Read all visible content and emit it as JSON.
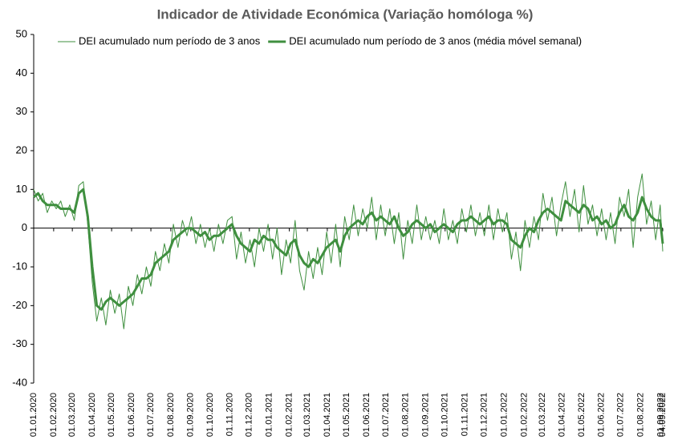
{
  "chart_data": {
    "type": "line",
    "title": "Indicador de Atividade Económica (Variação homóloga %)",
    "legend": "top",
    "x": [
      "2020-01-01",
      "2020-01-08",
      "2020-01-15",
      "2020-01-22",
      "2020-01-29",
      "2020-02-05",
      "2020-02-12",
      "2020-02-19",
      "2020-02-26",
      "2020-03-04",
      "2020-03-11",
      "2020-03-18",
      "2020-03-25",
      "2020-04-01",
      "2020-04-08",
      "2020-04-15",
      "2020-04-22",
      "2020-04-29",
      "2020-05-06",
      "2020-05-13",
      "2020-05-20",
      "2020-05-27",
      "2020-06-03",
      "2020-06-10",
      "2020-06-17",
      "2020-06-24",
      "2020-07-01",
      "2020-07-08",
      "2020-07-15",
      "2020-07-22",
      "2020-07-29",
      "2020-08-05",
      "2020-08-12",
      "2020-08-19",
      "2020-08-26",
      "2020-09-02",
      "2020-09-09",
      "2020-09-16",
      "2020-09-23",
      "2020-09-30",
      "2020-10-07",
      "2020-10-14",
      "2020-10-21",
      "2020-10-28",
      "2020-11-04",
      "2020-11-11",
      "2020-11-18",
      "2020-11-25",
      "2020-12-02",
      "2020-12-09",
      "2020-12-16",
      "2020-12-23",
      "2020-12-30",
      "2021-01-06",
      "2021-01-13",
      "2021-01-20",
      "2021-01-27",
      "2021-02-03",
      "2021-02-10",
      "2021-02-17",
      "2021-02-24",
      "2021-03-03",
      "2021-03-10",
      "2021-03-17",
      "2021-03-24",
      "2021-03-31",
      "2021-04-07",
      "2021-04-14",
      "2021-04-21",
      "2021-04-28",
      "2021-05-05",
      "2021-05-12",
      "2021-05-19",
      "2021-05-26",
      "2021-06-02",
      "2021-06-09",
      "2021-06-16",
      "2021-06-23",
      "2021-06-30",
      "2021-07-07",
      "2021-07-14",
      "2021-07-21",
      "2021-07-28",
      "2021-08-04",
      "2021-08-11",
      "2021-08-18",
      "2021-08-25",
      "2021-09-01",
      "2021-09-08",
      "2021-09-15",
      "2021-09-22",
      "2021-09-29",
      "2021-10-06",
      "2021-10-13",
      "2021-10-20",
      "2021-10-27",
      "2021-11-03",
      "2021-11-10",
      "2021-11-17",
      "2021-11-24",
      "2021-12-01",
      "2021-12-08",
      "2021-12-15",
      "2021-12-22",
      "2021-12-29",
      "2022-01-05",
      "2022-01-12",
      "2022-01-19",
      "2022-01-26",
      "2022-02-02",
      "2022-02-09",
      "2022-02-16",
      "2022-02-23",
      "2022-03-02",
      "2022-03-09",
      "2022-03-16",
      "2022-03-23",
      "2022-03-30",
      "2022-04-06",
      "2022-04-13",
      "2022-04-20",
      "2022-04-27",
      "2022-05-04",
      "2022-05-11",
      "2022-05-18",
      "2022-05-25",
      "2022-06-01",
      "2022-06-08",
      "2022-06-15",
      "2022-06-22",
      "2022-06-29",
      "2022-07-06",
      "2022-07-13",
      "2022-07-20",
      "2022-07-27",
      "2022-08-03",
      "2022-08-10",
      "2022-08-17",
      "2022-08-24",
      "2022-08-31",
      "2022-09-04"
    ],
    "series": [
      {
        "name": "DEI acumulado num período de 3 anos",
        "color": "#3f8f3f",
        "width": 1,
        "values": [
          10,
          7,
          9,
          4,
          7,
          5,
          7,
          3,
          6,
          2,
          11,
          12,
          1,
          -14,
          -24,
          -18,
          -25,
          -16,
          -22,
          -17,
          -26,
          -15,
          -20,
          -12,
          -17,
          -10,
          -15,
          -6,
          -11,
          -4,
          -9,
          1,
          -5,
          2,
          -2,
          3,
          -4,
          1,
          -5,
          0,
          -6,
          1,
          -4,
          2,
          3,
          -8,
          -1,
          -9,
          -3,
          -10,
          0,
          -6,
          1,
          -8,
          0,
          -12,
          -3,
          -9,
          2,
          -11,
          -16,
          -6,
          -13,
          -5,
          -12,
          -1,
          -9,
          1,
          -10,
          3,
          -3,
          6,
          -2,
          5,
          0,
          8,
          -3,
          6,
          -2,
          5,
          -4,
          4,
          -8,
          2,
          -4,
          6,
          -3,
          3,
          -3,
          2,
          -4,
          5,
          -3,
          2,
          -4,
          5,
          -1,
          6,
          -2,
          4,
          -2,
          6,
          -3,
          5,
          -1,
          4,
          -8,
          -1,
          -11,
          2,
          -5,
          3,
          -3,
          9,
          2,
          8,
          -2,
          6,
          12,
          3,
          10,
          -1,
          11,
          1,
          6,
          -2,
          5,
          -3,
          4,
          -4,
          8,
          3,
          10,
          -5,
          8,
          14,
          1,
          7,
          -3,
          6,
          -6
        ]
      },
      {
        "name": "DEI acumulado num período de 3 anos (média móvel semanal)",
        "color": "#3f8f3f",
        "width": 3,
        "values": [
          8,
          9,
          7,
          6,
          6,
          6,
          5,
          5,
          5,
          4,
          9,
          10,
          3,
          -10,
          -20,
          -21,
          -19,
          -18,
          -19,
          -20,
          -19,
          -18,
          -17,
          -15,
          -13,
          -13,
          -12,
          -9,
          -8,
          -7,
          -6,
          -3,
          -2,
          -1,
          0,
          0,
          -1,
          -2,
          -1,
          -3,
          -2,
          -2,
          -1,
          0,
          1,
          -2,
          -4,
          -5,
          -6,
          -3,
          -4,
          -2,
          -3,
          -3,
          -5,
          -6,
          -7,
          -4,
          -3,
          -7,
          -9,
          -10,
          -8,
          -9,
          -7,
          -5,
          -4,
          -3,
          -6,
          -2,
          0,
          1,
          2,
          1,
          3,
          4,
          2,
          3,
          2,
          1,
          3,
          0,
          -2,
          -1,
          1,
          2,
          1,
          0,
          1,
          -1,
          0,
          1,
          0,
          -1,
          1,
          2,
          2,
          3,
          2,
          1,
          2,
          3,
          1,
          2,
          2,
          1,
          -3,
          -4,
          -5,
          -2,
          0,
          -1,
          2,
          4,
          5,
          4,
          3,
          2,
          7,
          6,
          5,
          4,
          6,
          5,
          2,
          3,
          1,
          2,
          0,
          1,
          4,
          6,
          3,
          2,
          4,
          8,
          5,
          3,
          2,
          2,
          -4
        ]
      }
    ],
    "xlim": [
      "2020-01-01",
      "2022-09-04"
    ],
    "xticks": [
      {
        "value": "2020-01-01",
        "label": "01.01.2020"
      },
      {
        "value": "2020-02-01",
        "label": "01.02.2020"
      },
      {
        "value": "2020-03-01",
        "label": "01.03.2020"
      },
      {
        "value": "2020-04-01",
        "label": "01.04.2020"
      },
      {
        "value": "2020-05-01",
        "label": "01.05.2020"
      },
      {
        "value": "2020-06-01",
        "label": "01.06.2020"
      },
      {
        "value": "2020-07-01",
        "label": "01.07.2020"
      },
      {
        "value": "2020-08-01",
        "label": "01.08.2020"
      },
      {
        "value": "2020-09-01",
        "label": "01.09.2020"
      },
      {
        "value": "2020-10-01",
        "label": "01.10.2020"
      },
      {
        "value": "2020-11-01",
        "label": "01.11.2020"
      },
      {
        "value": "2020-12-01",
        "label": "01.12.2020"
      },
      {
        "value": "2021-01-01",
        "label": "01.01.2021"
      },
      {
        "value": "2021-02-01",
        "label": "01.02.2021"
      },
      {
        "value": "2021-03-01",
        "label": "01.03.2021"
      },
      {
        "value": "2021-04-01",
        "label": "01.04.2021"
      },
      {
        "value": "2021-05-01",
        "label": "01.05.2021"
      },
      {
        "value": "2021-06-01",
        "label": "01.06.2021"
      },
      {
        "value": "2021-07-01",
        "label": "01.07.2021"
      },
      {
        "value": "2021-08-01",
        "label": "01.08.2021"
      },
      {
        "value": "2021-09-01",
        "label": "01.09.2021"
      },
      {
        "value": "2021-10-01",
        "label": "01.10.2021"
      },
      {
        "value": "2021-11-01",
        "label": "01.11.2021"
      },
      {
        "value": "2021-12-01",
        "label": "01.12.2021"
      },
      {
        "value": "2022-01-01",
        "label": "01.01.2022"
      },
      {
        "value": "2022-02-01",
        "label": "01.02.2022"
      },
      {
        "value": "2022-03-01",
        "label": "01.03.2022"
      },
      {
        "value": "2022-04-01",
        "label": "01.04.2022"
      },
      {
        "value": "2022-05-01",
        "label": "01.05.2022"
      },
      {
        "value": "2022-06-01",
        "label": "01.06.2022"
      },
      {
        "value": "2022-07-01",
        "label": "01.07.2022"
      },
      {
        "value": "2022-08-01",
        "label": "01.08.2022"
      },
      {
        "value": "2022-09-01",
        "label": "01.09.2022"
      },
      {
        "value": "2022-09-04",
        "label": "04.09.2022"
      }
    ],
    "ylim": [
      -40,
      50
    ],
    "yticks": [
      -40,
      -30,
      -20,
      -10,
      0,
      10,
      20,
      30,
      40,
      50
    ],
    "grid": false
  }
}
